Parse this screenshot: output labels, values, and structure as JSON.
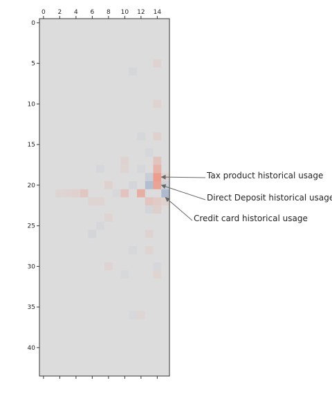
{
  "chart_data": {
    "type": "heatmap",
    "x_ticks": [
      0,
      2,
      4,
      6,
      8,
      10,
      12,
      14
    ],
    "y_ticks": [
      0,
      5,
      10,
      15,
      20,
      25,
      30,
      35,
      40
    ],
    "xlim": [
      -0.5,
      15.5
    ],
    "ylim": [
      43.5,
      -0.5
    ],
    "x_axis_position": "top",
    "grid": false,
    "colormap": "coolwarm",
    "background_color": "#dcdcdc",
    "cells": [
      {
        "x": 14,
        "y": 19,
        "v": 0.55
      },
      {
        "x": 14,
        "y": 20,
        "v": 0.5
      },
      {
        "x": 14,
        "y": 18,
        "v": 0.35
      },
      {
        "x": 14,
        "y": 17,
        "v": 0.22
      },
      {
        "x": 13,
        "y": 20,
        "v": -0.45
      },
      {
        "x": 13,
        "y": 19,
        "v": -0.2
      },
      {
        "x": 12,
        "y": 21,
        "v": 0.4
      },
      {
        "x": 15,
        "y": 21,
        "v": -0.5
      },
      {
        "x": 10,
        "y": 21,
        "v": 0.22
      },
      {
        "x": 5,
        "y": 21,
        "v": 0.18
      },
      {
        "x": 4,
        "y": 21,
        "v": 0.1
      },
      {
        "x": 3,
        "y": 21,
        "v": 0.08
      },
      {
        "x": 8,
        "y": 20,
        "v": 0.1
      },
      {
        "x": 11,
        "y": 20,
        "v": -0.1
      },
      {
        "x": 13,
        "y": 22,
        "v": 0.2
      },
      {
        "x": 14,
        "y": 22,
        "v": 0.15
      },
      {
        "x": 14,
        "y": 23,
        "v": 0.12
      },
      {
        "x": 13,
        "y": 23,
        "v": -0.1
      },
      {
        "x": 11,
        "y": 6,
        "v": -0.08
      },
      {
        "x": 14,
        "y": 5,
        "v": 0.08
      },
      {
        "x": 14,
        "y": 10,
        "v": 0.08
      },
      {
        "x": 14,
        "y": 14,
        "v": 0.1
      },
      {
        "x": 13,
        "y": 16,
        "v": -0.08
      },
      {
        "x": 12,
        "y": 14,
        "v": -0.07
      },
      {
        "x": 10,
        "y": 17,
        "v": 0.08
      },
      {
        "x": 10,
        "y": 18,
        "v": 0.07
      },
      {
        "x": 7,
        "y": 18,
        "v": -0.07
      },
      {
        "x": 12,
        "y": 18,
        "v": -0.08
      },
      {
        "x": 6,
        "y": 26,
        "v": -0.1
      },
      {
        "x": 7,
        "y": 25,
        "v": -0.07
      },
      {
        "x": 8,
        "y": 24,
        "v": 0.07
      },
      {
        "x": 13,
        "y": 26,
        "v": 0.08
      },
      {
        "x": 13,
        "y": 28,
        "v": 0.07
      },
      {
        "x": 11,
        "y": 28,
        "v": -0.07
      },
      {
        "x": 8,
        "y": 30,
        "v": 0.07
      },
      {
        "x": 10,
        "y": 31,
        "v": -0.06
      },
      {
        "x": 14,
        "y": 30,
        "v": -0.07
      },
      {
        "x": 14,
        "y": 31,
        "v": 0.06
      },
      {
        "x": 11,
        "y": 36,
        "v": -0.06
      },
      {
        "x": 12,
        "y": 36,
        "v": 0.05
      },
      {
        "x": 2,
        "y": 21,
        "v": 0.06
      },
      {
        "x": 6,
        "y": 22,
        "v": 0.06
      },
      {
        "x": 9,
        "y": 21,
        "v": -0.06
      },
      {
        "x": 7,
        "y": 22,
        "v": 0.07
      },
      {
        "x": 15,
        "y": 20,
        "v": -0.15
      },
      {
        "x": 15,
        "y": 22,
        "v": 0.1
      },
      {
        "x": 15,
        "y": 19,
        "v": 0.08
      }
    ],
    "annotations": [
      {
        "text": "Tax product historical usage",
        "target": {
          "x": 14.5,
          "y": 19
        }
      },
      {
        "text": "Direct Deposit historical usage",
        "target": {
          "x": 14.5,
          "y": 20
        }
      },
      {
        "text": "Credit card historical usage",
        "target": {
          "x": 15,
          "y": 21.5
        }
      }
    ]
  }
}
